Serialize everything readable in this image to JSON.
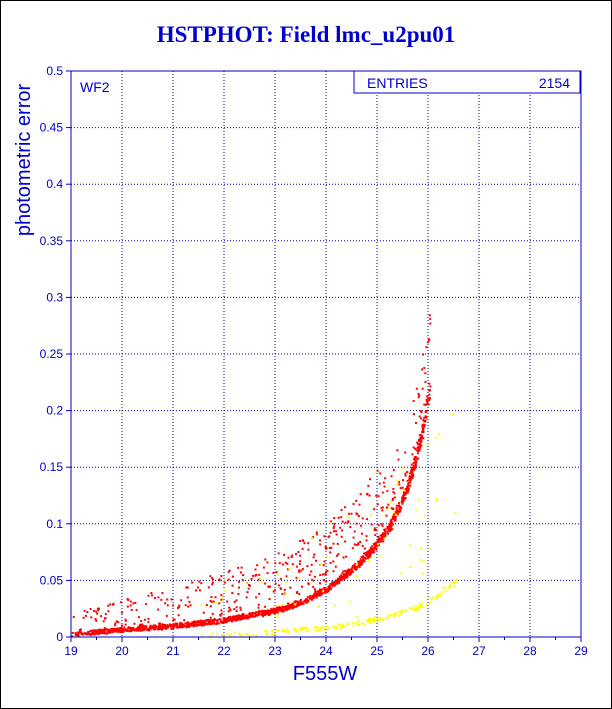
{
  "chart_data": {
    "type": "scatter",
    "title": "HSTPHOT: Field lmc_u2pu01",
    "xlabel": "F555W",
    "ylabel": "photometric error",
    "panel_label": "WF2",
    "stats_label": "ENTRIES",
    "stats_value": "2154",
    "xlim": [
      19,
      29
    ],
    "ylim": [
      0,
      0.5
    ],
    "x_ticks": [
      "19",
      "20",
      "21",
      "22",
      "23",
      "24",
      "25",
      "26",
      "27",
      "28",
      "29"
    ],
    "y_ticks": [
      "0",
      "0.05",
      "0.1",
      "0.15",
      "0.2",
      "0.25",
      "0.3",
      "0.35",
      "0.4",
      "0.45",
      "0.5"
    ],
    "grid": true,
    "colors": {
      "axis": "#0000cc",
      "grid": "#0000aa",
      "series_red": "#ff0000",
      "series_yellow": "#ffff00"
    },
    "series": [
      {
        "color": "red",
        "curve": [
          {
            "x": 19.0,
            "y": 0.002
          },
          {
            "x": 20.0,
            "y": 0.006
          },
          {
            "x": 21.0,
            "y": 0.009
          },
          {
            "x": 22.0,
            "y": 0.014
          },
          {
            "x": 23.0,
            "y": 0.022
          },
          {
            "x": 23.5,
            "y": 0.029
          },
          {
            "x": 24.0,
            "y": 0.04
          },
          {
            "x": 24.5,
            "y": 0.056
          },
          {
            "x": 25.0,
            "y": 0.078
          },
          {
            "x": 25.3,
            "y": 0.097
          },
          {
            "x": 25.5,
            "y": 0.115
          },
          {
            "x": 25.7,
            "y": 0.14
          },
          {
            "x": 25.9,
            "y": 0.175
          },
          {
            "x": 26.05,
            "y": 0.215
          }
        ],
        "points": 1900
      },
      {
        "color": "yellow",
        "curve": [
          {
            "x": 21.5,
            "y": 0.001
          },
          {
            "x": 22.5,
            "y": 0.002
          },
          {
            "x": 23.5,
            "y": 0.006
          },
          {
            "x": 24.5,
            "y": 0.01
          },
          {
            "x": 25.2,
            "y": 0.017
          },
          {
            "x": 25.8,
            "y": 0.025
          },
          {
            "x": 26.2,
            "y": 0.035
          },
          {
            "x": 26.6,
            "y": 0.05
          }
        ],
        "points": 250
      }
    ]
  }
}
